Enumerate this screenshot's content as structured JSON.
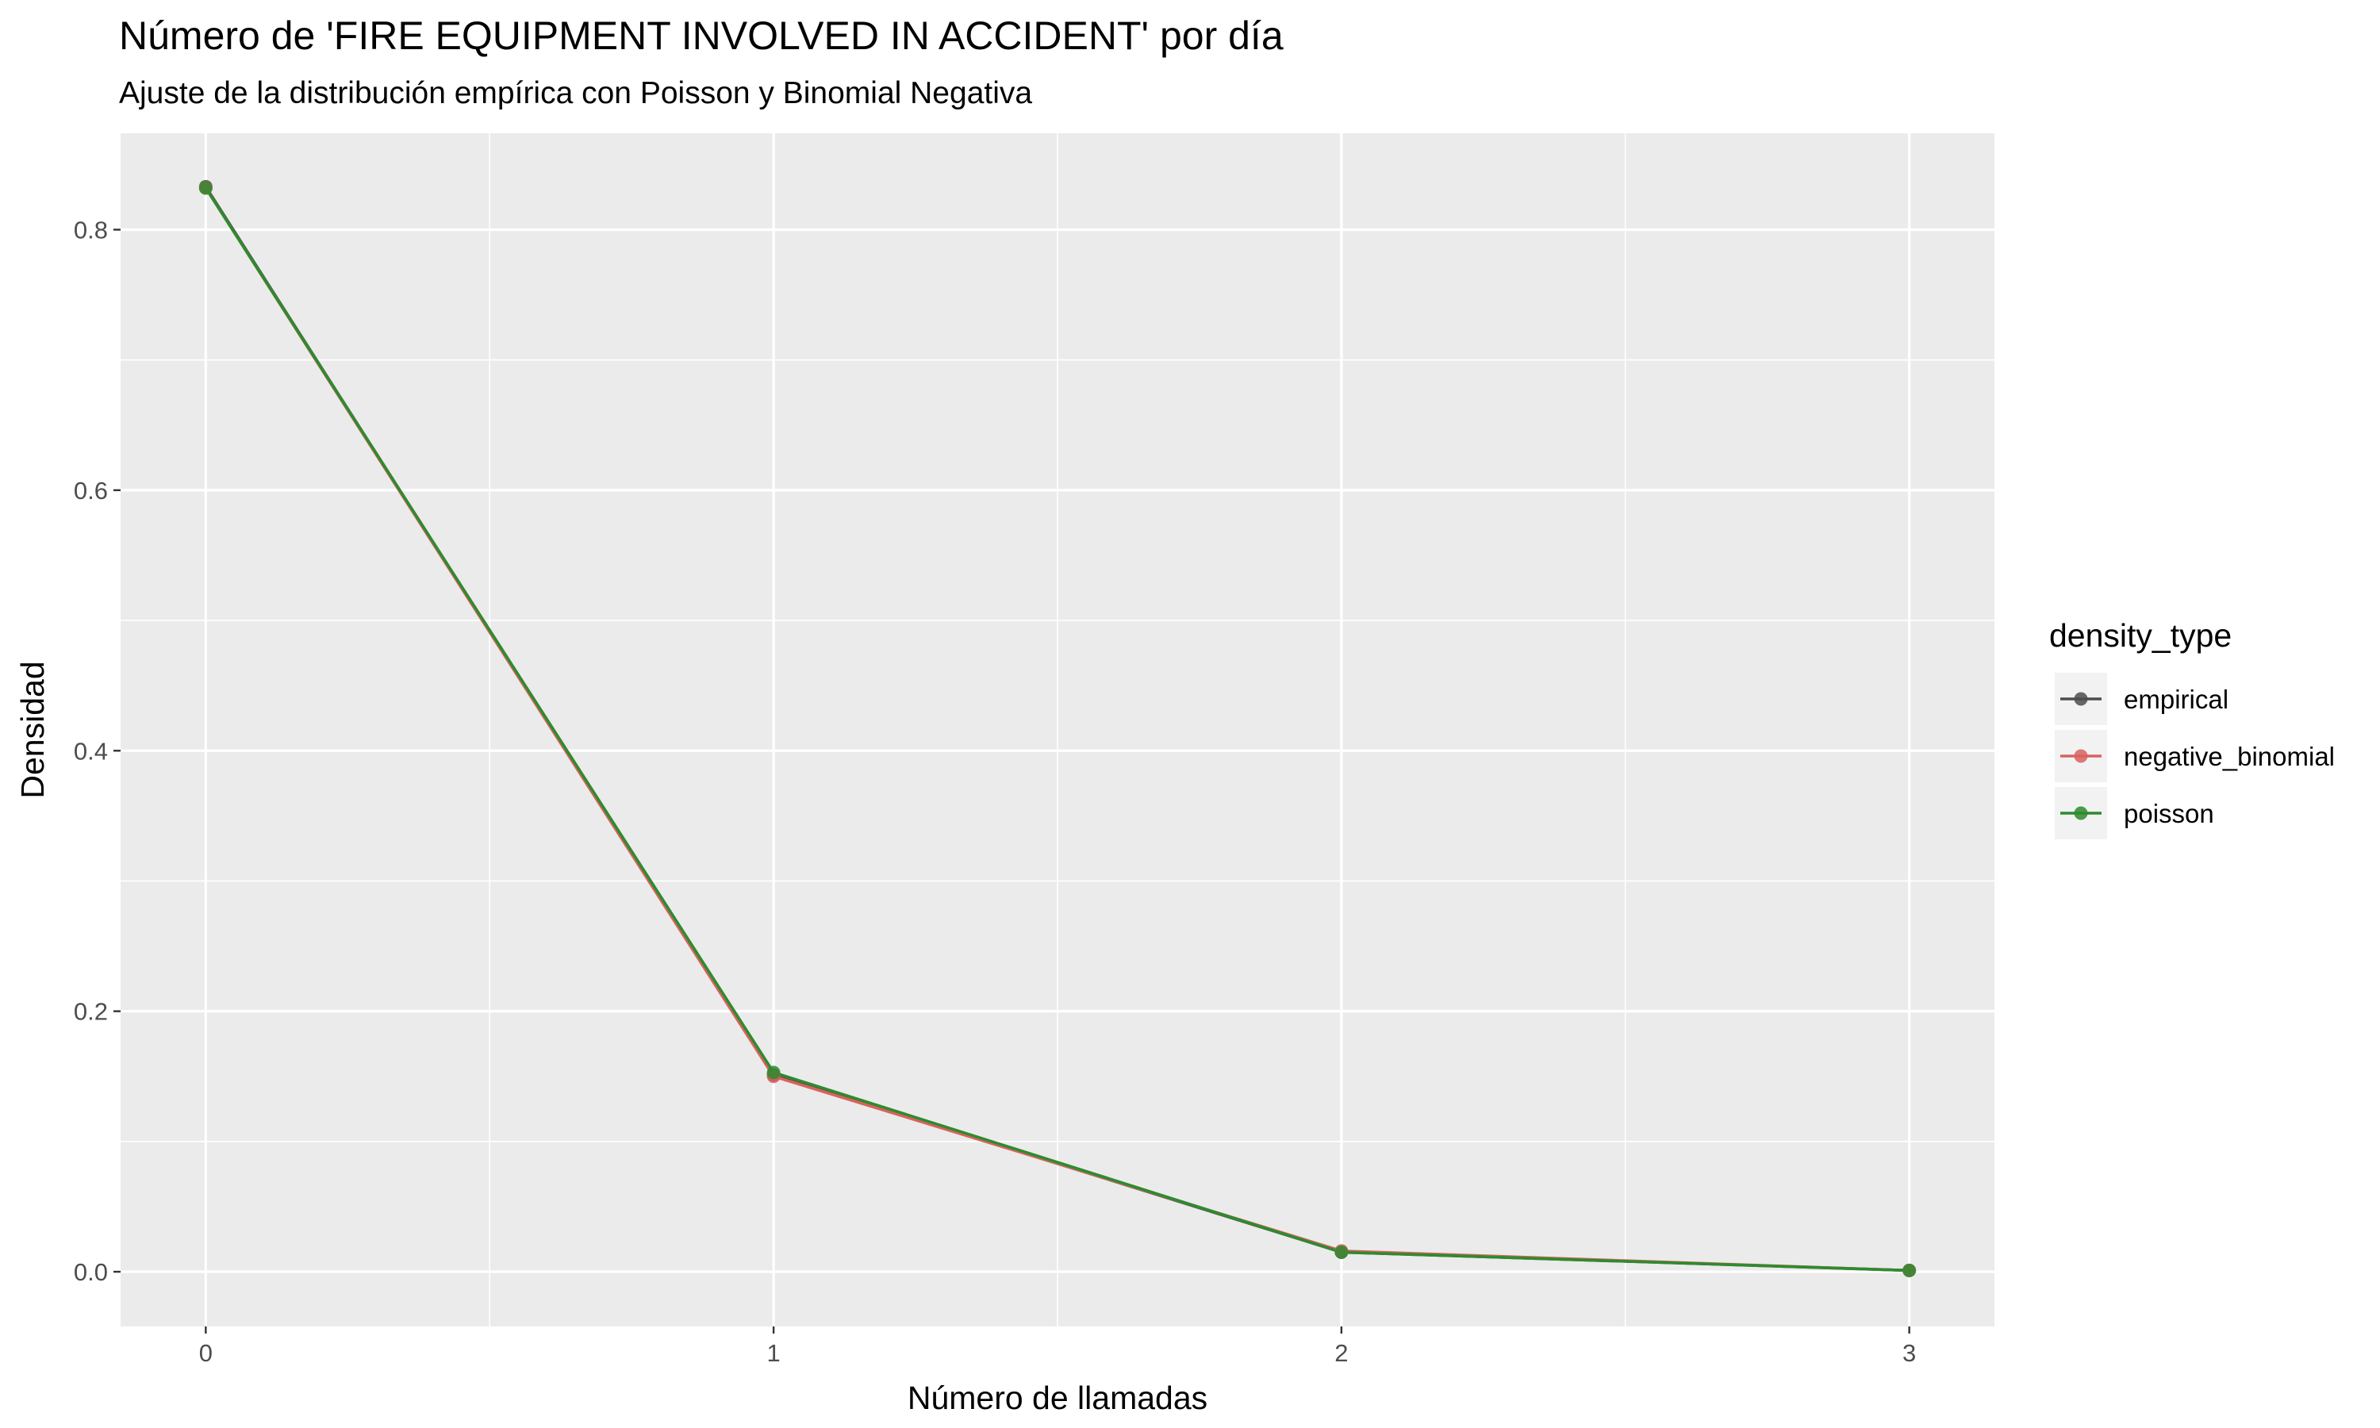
{
  "chart_data": {
    "type": "line",
    "title": "Número de 'FIRE EQUIPMENT INVOLVED IN ACCIDENT' por día",
    "subtitle": "Ajuste de la distribución empírica con Poisson y Binomial Negativa",
    "xlabel": "Número de llamadas",
    "ylabel": "Densidad",
    "x": [
      0,
      1,
      2,
      3
    ],
    "xlim": [
      -0.15,
      3.15
    ],
    "ylim": [
      -0.042,
      0.874
    ],
    "x_ticks": [
      0,
      1,
      2,
      3
    ],
    "x_tick_labels": [
      "0",
      "1",
      "2",
      "3"
    ],
    "y_ticks": [
      0.0,
      0.2,
      0.4,
      0.6,
      0.8
    ],
    "y_tick_labels": [
      "0.0",
      "0.2",
      "0.4",
      "0.6",
      "0.8"
    ],
    "grid": true,
    "legend": {
      "title": "density_type",
      "position": "right"
    },
    "series": [
      {
        "name": "empirical",
        "color": "#4d4d4d",
        "values": [
          0.833,
          0.151,
          0.015,
          0.001
        ]
      },
      {
        "name": "negative_binomial",
        "color": "#d9625e",
        "values": [
          0.832,
          0.15,
          0.016,
          0.001
        ]
      },
      {
        "name": "poisson",
        "color": "#2e8b2e",
        "values": [
          0.832,
          0.153,
          0.015,
          0.001
        ]
      }
    ]
  }
}
